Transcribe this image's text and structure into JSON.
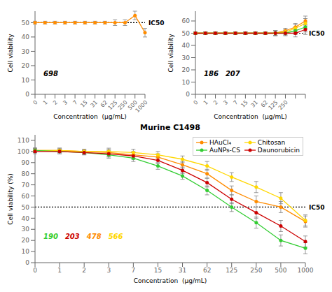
{
  "chart_data": [
    {
      "type": "line",
      "categories": [
        "0",
        "1",
        "2",
        "3",
        "7",
        "15",
        "31",
        "62",
        "125",
        "250",
        "500",
        "1000"
      ],
      "series": [
        {
          "color": "#FF8C00",
          "values": [
            50,
            50,
            50,
            50,
            50,
            50,
            50,
            50,
            50,
            50,
            55,
            43
          ],
          "errors": [
            1,
            1,
            1,
            1,
            1,
            1,
            1,
            1,
            2,
            2,
            3,
            3
          ]
        }
      ],
      "ylim": [
        0,
        58
      ],
      "yticks": [
        0,
        10,
        20,
        30,
        40,
        50
      ],
      "x_label": "Concentration  (µg/mL)",
      "y_label": "Cell viability",
      "reference_line": {
        "y": 50,
        "label": "IC50"
      },
      "annotations": [
        {
          "text": "698",
          "color": "#000000"
        }
      ],
      "marker": "circle"
    },
    {
      "type": "line",
      "categories": [
        "0",
        "1",
        "2",
        "3",
        "7",
        "15",
        "31",
        "62",
        "125",
        "250",
        null,
        null
      ],
      "series": [
        {
          "color": "#FF8C00",
          "values": [
            50,
            50,
            50,
            50,
            50,
            50,
            50,
            50,
            50,
            52,
            55,
            60
          ],
          "errors": [
            1,
            1,
            1,
            1,
            1,
            1,
            1,
            1,
            2,
            2,
            3,
            4
          ]
        },
        {
          "color": "#FFD700",
          "values": [
            50,
            50,
            50,
            50,
            50,
            50,
            50,
            50,
            50,
            51,
            54,
            58
          ],
          "errors": [
            1,
            1,
            1,
            1,
            1,
            1,
            1,
            1,
            2,
            2,
            3,
            4
          ]
        },
        {
          "color": "#32CD32",
          "values": [
            50,
            50,
            50,
            50,
            50,
            50,
            50,
            50,
            50,
            50,
            52,
            55
          ],
          "errors": [
            1,
            1,
            1,
            1,
            1,
            1,
            1,
            1,
            2,
            2,
            3,
            4
          ]
        },
        {
          "color": "#CC0000",
          "values": [
            50,
            50,
            50,
            50,
            50,
            50,
            50,
            50,
            50,
            50,
            50,
            53
          ],
          "errors": [
            1,
            1,
            1,
            1,
            1,
            1,
            1,
            1,
            2,
            2,
            3,
            4
          ]
        }
      ],
      "ylim": [
        0,
        68
      ],
      "yticks": [
        0,
        10,
        20,
        30,
        40,
        50,
        60
      ],
      "x_label": "Concentration  (µg/mL)",
      "y_label": "Cell viability",
      "reference_line": {
        "y": 50,
        "label": "IC50"
      },
      "annotations": [
        {
          "text": "186",
          "color": "#000000"
        },
        {
          "text": "207",
          "color": "#000000"
        }
      ],
      "marker": "circle"
    },
    {
      "type": "line",
      "title": "Murine C1498",
      "categories": [
        "0",
        "1",
        "2",
        "3",
        "7",
        "15",
        "31",
        "62",
        "125",
        "250",
        "500",
        "1000"
      ],
      "series": [
        {
          "name": "HAuCl₄",
          "color": "#FF8C00",
          "values": [
            101,
            101,
            100,
            99,
            97,
            95,
            88,
            80,
            65,
            55,
            50,
            37
          ],
          "errors": [
            2,
            2,
            2,
            3,
            3,
            3,
            3,
            4,
            4,
            5,
            5,
            5
          ]
        },
        {
          "name": "Chitosan",
          "color": "#FFD700",
          "values": [
            101,
            101,
            100,
            100,
            99,
            97,
            93,
            87,
            77,
            68,
            58,
            38
          ],
          "errors": [
            2,
            2,
            2,
            3,
            3,
            3,
            3,
            4,
            4,
            5,
            5,
            5
          ]
        },
        {
          "name": "AuNPs-CS",
          "color": "#32CD32",
          "values": [
            101,
            100,
            99,
            97,
            94,
            87,
            78,
            65,
            50,
            36,
            20,
            13
          ],
          "errors": [
            2,
            2,
            2,
            3,
            3,
            3,
            3,
            4,
            4,
            5,
            5,
            5
          ]
        },
        {
          "name": "Daunorubicin",
          "color": "#CC0000",
          "values": [
            100,
            100,
            99,
            98,
            96,
            92,
            83,
            72,
            57,
            45,
            33,
            19
          ],
          "errors": [
            2,
            2,
            2,
            3,
            3,
            3,
            3,
            4,
            4,
            5,
            5,
            5
          ]
        }
      ],
      "ylim": [
        0,
        115
      ],
      "yticks": [
        0,
        10,
        20,
        30,
        40,
        50,
        60,
        70,
        80,
        90,
        100,
        110
      ],
      "x_label": "Concentration  (µg/mL)",
      "y_label": "Cell viability (%)",
      "reference_line": {
        "y": 50,
        "label": "IC50"
      },
      "annotations": [
        {
          "text": "190",
          "color": "#32CD32"
        },
        {
          "text": "203",
          "color": "#CC0000"
        },
        {
          "text": "478",
          "color": "#FF8C00"
        },
        {
          "text": "566",
          "color": "#FFD700"
        }
      ],
      "legend": "upper right",
      "marker": "circle"
    }
  ]
}
